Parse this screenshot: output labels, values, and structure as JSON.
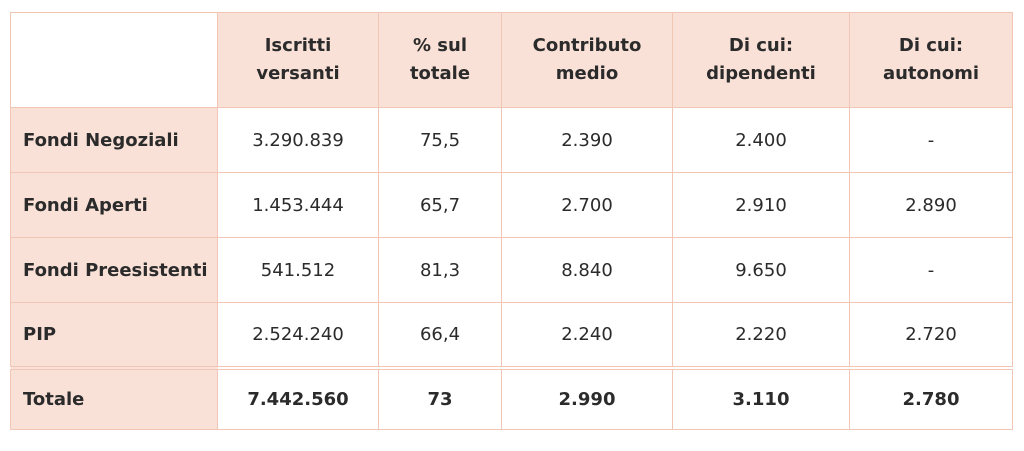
{
  "table": {
    "columns": [
      {
        "line1": "",
        "line2": ""
      },
      {
        "line1": "Iscritti",
        "line2": "versanti"
      },
      {
        "line1": "% sul",
        "line2": "totale"
      },
      {
        "line1": "Contributo",
        "line2": "medio"
      },
      {
        "line1": "Di cui:",
        "line2": "dipendenti"
      },
      {
        "line1": "Di cui:",
        "line2": "autonomi"
      }
    ],
    "rows": [
      {
        "label": "Fondi Negoziali",
        "cells": [
          "3.290.839",
          "75,5",
          "2.390",
          "2.400",
          "-"
        ]
      },
      {
        "label": "Fondi Aperti",
        "cells": [
          "1.453.444",
          "65,7",
          "2.700",
          "2.910",
          "2.890"
        ]
      },
      {
        "label": "Fondi Preesistenti",
        "cells": [
          "541.512",
          "81,3",
          "8.840",
          "9.650",
          "-"
        ]
      },
      {
        "label": "PIP",
        "cells": [
          "2.524.240",
          "66,4",
          "2.240",
          "2.220",
          "2.720"
        ]
      }
    ],
    "total": {
      "label": "Totale",
      "cells": [
        "7.442.560",
        "73",
        "2.990",
        "3.110",
        "2.780"
      ]
    }
  },
  "colors": {
    "header_fill": "#f9e1d7",
    "border": "#f2c6b4",
    "text": "#2b2b2b"
  }
}
